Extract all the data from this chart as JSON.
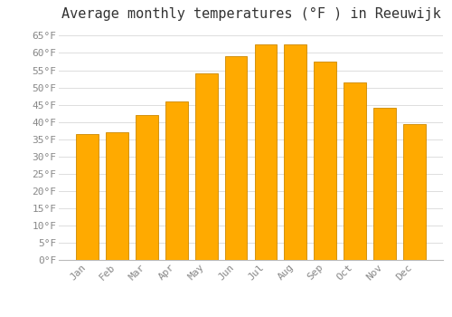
{
  "title": "Average monthly temperatures (°F ) in Reeuwijk",
  "months": [
    "Jan",
    "Feb",
    "Mar",
    "Apr",
    "May",
    "Jun",
    "Jul",
    "Aug",
    "Sep",
    "Oct",
    "Nov",
    "Dec"
  ],
  "values": [
    36.5,
    37.0,
    42.0,
    46.0,
    54.0,
    59.0,
    62.5,
    62.5,
    57.5,
    51.5,
    44.0,
    39.5
  ],
  "bar_color": "#FFAA00",
  "bar_edge_color": "#CC8800",
  "background_color": "#FFFFFF",
  "grid_color": "#DDDDDD",
  "text_color": "#888888",
  "title_color": "#333333",
  "ylim": [
    0,
    68
  ],
  "yticks": [
    0,
    5,
    10,
    15,
    20,
    25,
    30,
    35,
    40,
    45,
    50,
    55,
    60,
    65
  ],
  "title_fontsize": 11,
  "tick_fontsize": 8,
  "bar_width": 0.75
}
